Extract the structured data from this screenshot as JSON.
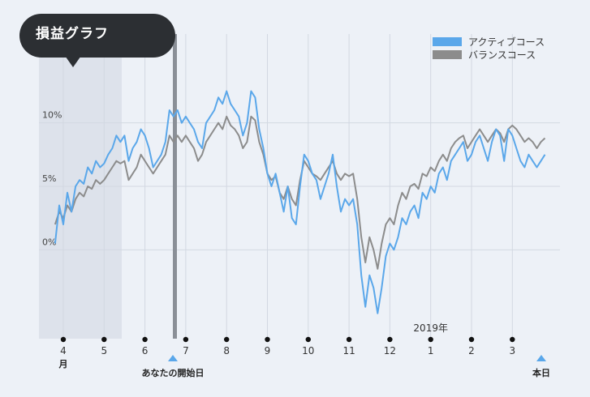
{
  "header": {
    "title": "損益グラフ"
  },
  "chart_data": {
    "type": "line",
    "title": "損益グラフ",
    "xlabel": "",
    "ylabel": "",
    "ylim": [
      -7,
      17
    ],
    "y_ticks": [
      {
        "value": 10,
        "label": "10%"
      },
      {
        "value": 5,
        "label": "5%"
      },
      {
        "value": 0,
        "label": "0%"
      }
    ],
    "x_ticks": [
      "4",
      "5",
      "6",
      "7",
      "8",
      "9",
      "10",
      "11",
      "12",
      "1",
      "2",
      "3"
    ],
    "x_tick_sublabels": {
      "4": "月"
    },
    "annotations": {
      "year_label": "2019年",
      "start_label": "あなたの開始日",
      "today_label": "本日"
    },
    "legend_position": "top-right",
    "grid": true,
    "series": [
      {
        "name": "アクティブコース",
        "color": "#5aa7ea",
        "x": [
          3.8,
          3.9,
          4.0,
          4.1,
          4.2,
          4.3,
          4.4,
          4.5,
          4.6,
          4.7,
          4.8,
          4.9,
          5.0,
          5.1,
          5.2,
          5.3,
          5.4,
          5.5,
          5.6,
          5.7,
          5.8,
          5.9,
          6.0,
          6.1,
          6.2,
          6.3,
          6.4,
          6.5,
          6.6,
          6.7,
          6.8,
          6.9,
          7.0,
          7.1,
          7.2,
          7.3,
          7.4,
          7.5,
          7.6,
          7.7,
          7.8,
          7.9,
          8.0,
          8.1,
          8.2,
          8.3,
          8.4,
          8.5,
          8.6,
          8.7,
          8.8,
          8.9,
          9.0,
          9.1,
          9.2,
          9.3,
          9.4,
          9.5,
          9.6,
          9.7,
          9.8,
          9.9,
          10.0,
          10.1,
          10.2,
          10.3,
          10.4,
          10.5,
          10.6,
          10.7,
          10.8,
          10.9,
          11.0,
          11.1,
          11.2,
          11.3,
          11.4,
          11.5,
          11.6,
          11.7,
          11.8,
          11.9,
          12.0,
          12.1,
          12.2,
          12.3,
          12.4,
          12.5,
          12.6,
          12.7,
          12.8,
          12.9,
          13.0,
          13.1,
          13.2,
          13.3,
          13.4,
          13.5,
          13.6,
          13.7,
          13.8,
          13.9,
          14.0,
          14.1,
          14.2,
          14.3,
          14.4,
          14.5,
          14.6,
          14.7,
          14.8,
          14.9,
          15.0,
          15.1,
          15.2,
          15.3,
          15.4,
          15.5,
          15.6,
          15.7,
          15.8
        ],
        "values": [
          0.5,
          3.5,
          2.0,
          4.5,
          3.0,
          5.0,
          5.5,
          5.2,
          6.5,
          6.0,
          7.0,
          6.5,
          6.8,
          7.5,
          8.0,
          9.0,
          8.5,
          9.0,
          7.0,
          8.0,
          8.5,
          9.5,
          9.0,
          8.0,
          6.5,
          7.0,
          7.5,
          8.5,
          11.0,
          10.5,
          11.0,
          10.0,
          10.5,
          10.0,
          9.5,
          8.5,
          8.0,
          10.0,
          10.5,
          11.0,
          12.0,
          11.5,
          12.5,
          11.5,
          11.0,
          10.5,
          9.0,
          10.0,
          12.5,
          12.0,
          9.5,
          8.0,
          6.0,
          5.0,
          6.0,
          4.5,
          3.0,
          5.0,
          2.5,
          2.0,
          5.0,
          7.5,
          7.0,
          6.0,
          5.5,
          4.0,
          5.0,
          6.0,
          7.5,
          5.0,
          3.0,
          4.0,
          3.5,
          4.0,
          2.0,
          -2.0,
          -4.5,
          -2.0,
          -3.0,
          -5.0,
          -3.0,
          -0.5,
          0.5,
          0.0,
          1.0,
          2.5,
          2.0,
          3.0,
          3.5,
          2.5,
          4.5,
          4.0,
          5.0,
          4.5,
          6.0,
          6.5,
          5.5,
          7.0,
          7.5,
          8.0,
          8.5,
          7.0,
          7.5,
          8.5,
          9.0,
          8.0,
          7.0,
          8.5,
          9.5,
          9.0,
          7.0,
          9.5,
          9.0,
          8.0,
          7.0,
          6.5,
          7.5,
          7.0,
          6.5,
          7.0,
          7.5
        ]
      },
      {
        "name": "バランスコース",
        "color": "#8c8c8c",
        "x": [
          3.8,
          3.9,
          4.0,
          4.1,
          4.2,
          4.3,
          4.4,
          4.5,
          4.6,
          4.7,
          4.8,
          4.9,
          5.0,
          5.1,
          5.2,
          5.3,
          5.4,
          5.5,
          5.6,
          5.7,
          5.8,
          5.9,
          6.0,
          6.1,
          6.2,
          6.3,
          6.4,
          6.5,
          6.6,
          6.7,
          6.8,
          6.9,
          7.0,
          7.1,
          7.2,
          7.3,
          7.4,
          7.5,
          7.6,
          7.7,
          7.8,
          7.9,
          8.0,
          8.1,
          8.2,
          8.3,
          8.4,
          8.5,
          8.6,
          8.7,
          8.8,
          8.9,
          9.0,
          9.1,
          9.2,
          9.3,
          9.4,
          9.5,
          9.6,
          9.7,
          9.8,
          9.9,
          10.0,
          10.1,
          10.2,
          10.3,
          10.4,
          10.5,
          10.6,
          10.7,
          10.8,
          10.9,
          11.0,
          11.1,
          11.2,
          11.3,
          11.4,
          11.5,
          11.6,
          11.7,
          11.8,
          11.9,
          12.0,
          12.1,
          12.2,
          12.3,
          12.4,
          12.5,
          12.6,
          12.7,
          12.8,
          12.9,
          13.0,
          13.1,
          13.2,
          13.3,
          13.4,
          13.5,
          13.6,
          13.7,
          13.8,
          13.9,
          14.0,
          14.1,
          14.2,
          14.3,
          14.4,
          14.5,
          14.6,
          14.7,
          14.8,
          14.9,
          15.0,
          15.1,
          15.2,
          15.3,
          15.4,
          15.5,
          15.6,
          15.7,
          15.8
        ],
        "values": [
          2.0,
          3.0,
          2.5,
          3.5,
          3.0,
          4.0,
          4.5,
          4.2,
          5.0,
          4.8,
          5.5,
          5.2,
          5.5,
          6.0,
          6.5,
          7.0,
          6.8,
          7.0,
          5.5,
          6.0,
          6.5,
          7.5,
          7.0,
          6.5,
          6.0,
          6.5,
          7.0,
          7.5,
          9.0,
          8.5,
          9.0,
          8.5,
          9.0,
          8.5,
          8.0,
          7.0,
          7.5,
          8.5,
          9.0,
          9.5,
          10.0,
          9.5,
          10.5,
          9.8,
          9.5,
          9.0,
          8.0,
          8.5,
          10.5,
          10.2,
          8.5,
          7.5,
          6.0,
          5.5,
          5.8,
          4.5,
          4.0,
          5.0,
          4.0,
          3.5,
          5.5,
          7.0,
          6.5,
          6.0,
          5.8,
          5.5,
          6.0,
          6.5,
          7.0,
          6.0,
          5.5,
          6.0,
          5.8,
          6.0,
          4.0,
          1.0,
          -1.0,
          1.0,
          0.0,
          -1.5,
          0.5,
          2.0,
          2.5,
          2.0,
          3.5,
          4.5,
          4.0,
          5.0,
          5.2,
          4.8,
          6.0,
          5.8,
          6.5,
          6.2,
          7.0,
          7.5,
          7.0,
          8.0,
          8.5,
          8.8,
          9.0,
          8.0,
          8.5,
          9.0,
          9.5,
          9.0,
          8.5,
          9.0,
          9.5,
          9.2,
          8.5,
          9.5,
          9.8,
          9.5,
          9.0,
          8.5,
          8.8,
          8.5,
          8.0,
          8.5,
          8.8
        ]
      }
    ]
  }
}
